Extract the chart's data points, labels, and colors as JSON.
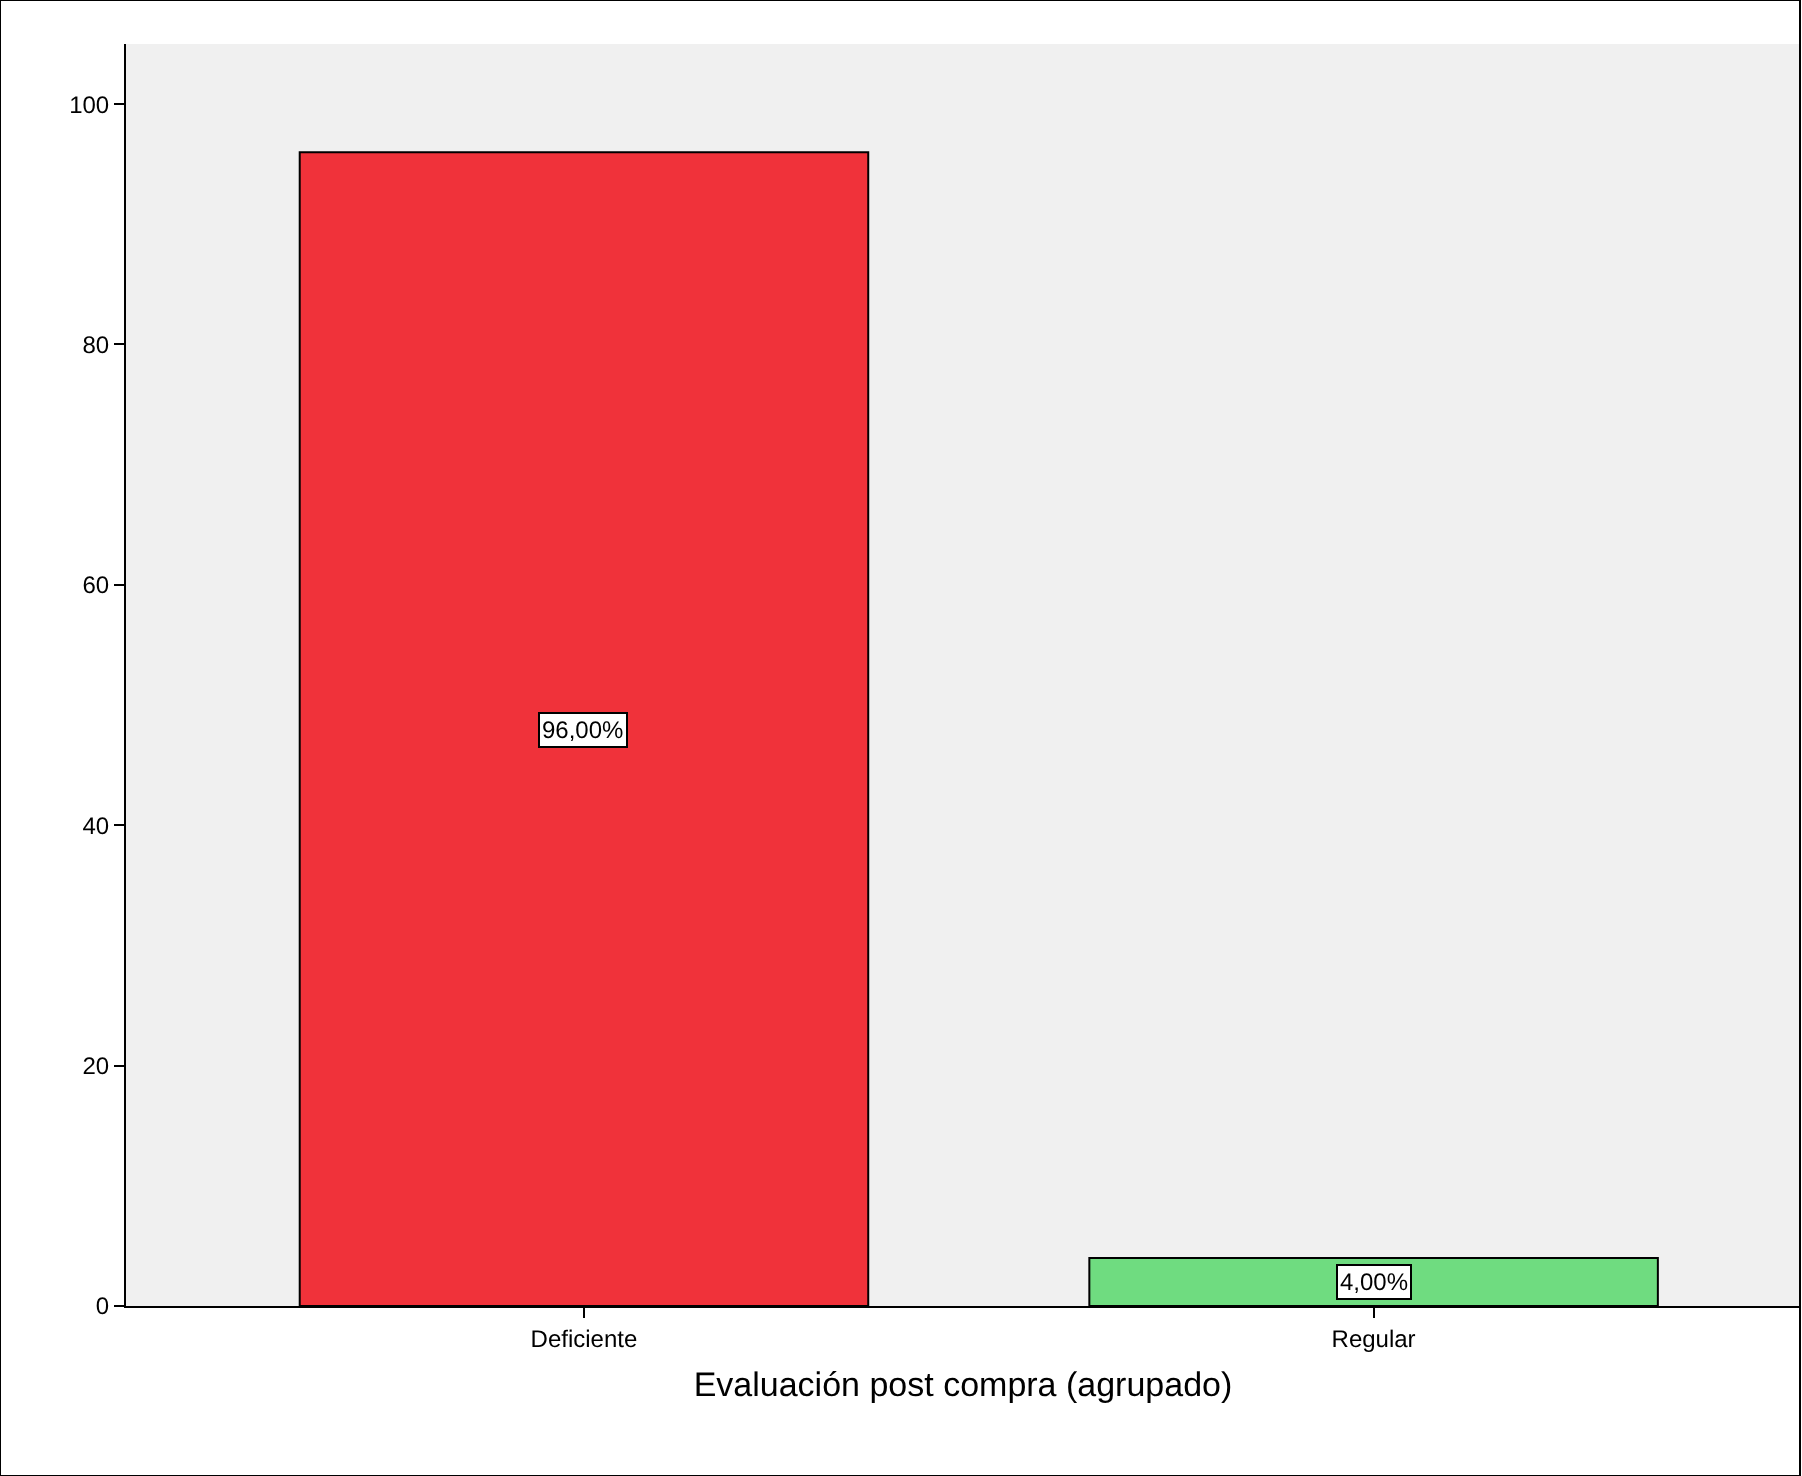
{
  "chart_data": {
    "type": "bar",
    "xlabel": "Evaluación post compra (agrupado)",
    "categories": [
      "Deficiente",
      "Regular"
    ],
    "values": [
      96,
      4
    ],
    "colors": [
      "#f0323a",
      "#6fdc80"
    ],
    "value_labels": [
      "96,00%",
      "4,00%"
    ],
    "ylim": [
      0,
      105
    ],
    "yticks": [
      0,
      20,
      40,
      60,
      80,
      100
    ],
    "grid": false
  }
}
